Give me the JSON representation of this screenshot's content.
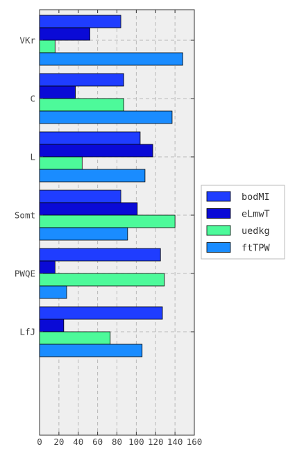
{
  "chart_data": {
    "type": "bar",
    "orientation": "horizontal",
    "categories": [
      "VKr",
      "C",
      "L",
      "Somt",
      "PWQE",
      "LfJ"
    ],
    "series": [
      {
        "name": "bodMI",
        "color": "#1f3dff",
        "values": [
          84,
          87,
          104,
          84,
          125,
          127
        ]
      },
      {
        "name": "eLmwT",
        "color": "#0a0ad6",
        "values": [
          52,
          37,
          117,
          101,
          16,
          25
        ]
      },
      {
        "name": "uedkg",
        "color": "#4dfa9a",
        "values": [
          16,
          87,
          44,
          140,
          129,
          73
        ]
      },
      {
        "name": "ftTPW",
        "color": "#1a8cff",
        "values": [
          148,
          137,
          109,
          91,
          28,
          106
        ]
      }
    ],
    "x_ticks": [
      0,
      20,
      40,
      60,
      80,
      100,
      120,
      140,
      160
    ],
    "xlim": [
      0,
      160
    ],
    "grid": true,
    "legend_position": "center-right",
    "title": "",
    "xlabel": "",
    "ylabel": ""
  }
}
